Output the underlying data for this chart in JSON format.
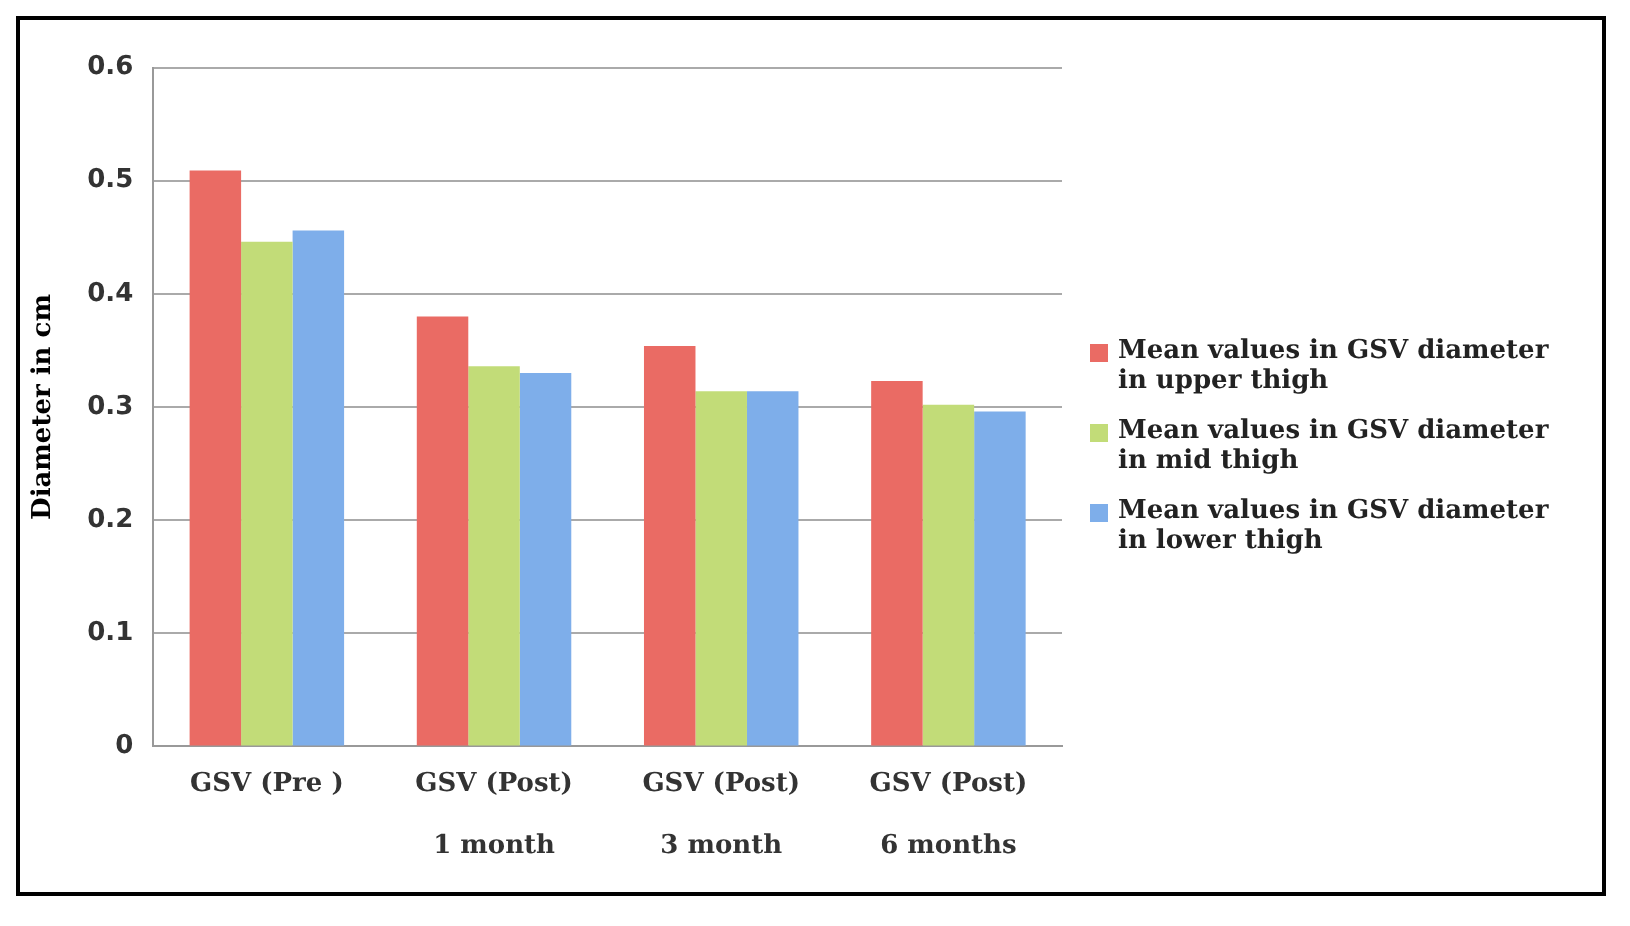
{
  "chart_data": {
    "type": "bar",
    "ylabel": "Diameter in cm",
    "categories": [
      "GSV (Pre )",
      "GSV (Post)\n\n1 month",
      "GSV (Post)\n\n3 month",
      "GSV (Post)\n\n6 months"
    ],
    "series": [
      {
        "name": "Mean values in GSV diameter  in upper thigh",
        "color": "#ea6b64",
        "values": [
          0.509,
          0.38,
          0.354,
          0.323
        ]
      },
      {
        "name": "Mean values in GSV diameter in mid thigh",
        "color": "#c2dc78",
        "values": [
          0.446,
          0.336,
          0.314,
          0.302
        ]
      },
      {
        "name": "Mean values in GSV diameter in lower thigh",
        "color": "#7eaeea",
        "values": [
          0.456,
          0.33,
          0.314,
          0.296
        ]
      }
    ],
    "ylim": [
      0,
      0.6
    ],
    "yticks": [
      0,
      0.1,
      0.2,
      0.3,
      0.4,
      0.5,
      0.6
    ],
    "grid": "y",
    "legend": "right"
  }
}
